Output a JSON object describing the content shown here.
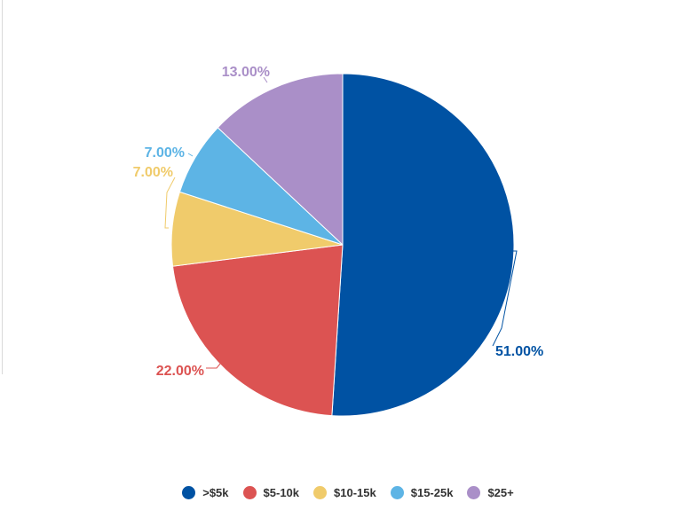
{
  "chart_data": {
    "type": "pie",
    "title": "",
    "categories": [
      ">$5k",
      "$5-10k",
      "$10-15k",
      "$15-25k",
      "$25+"
    ],
    "values": [
      51,
      22,
      7,
      7,
      13
    ],
    "labels": [
      "51.00%",
      "22.00%",
      "7.00%",
      "7.00%",
      "13.00%"
    ],
    "colors": [
      "#0052a3",
      "#dc5352",
      "#f0cb6b",
      "#5db4e5",
      "#aa8fc8"
    ],
    "legend_placement": "bottom",
    "start": "top",
    "direction": "clockwise"
  }
}
